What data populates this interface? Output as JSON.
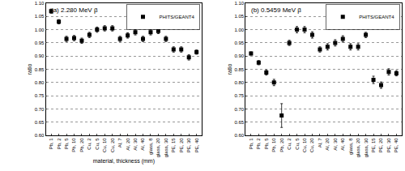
{
  "chart_data": [
    {
      "type": "scatter",
      "title": "(a) 2.280 MeV β",
      "x_label": "material, thickness (mm)",
      "y_label": "ratio",
      "categories": [
        "Pb, 1",
        "Pb, 2",
        "Pb, 5",
        "Pb, 10",
        "Pb, 20",
        "Cu, 2",
        "Cu, 5",
        "Cu, 10",
        "Cu, 20",
        "Al, 7",
        "Al, 20",
        "Al, 30",
        "Al, 40",
        "glass, 8",
        "glass, 20",
        "glass, 30",
        "PE, 15",
        "PE, 20",
        "PE, 30",
        "PE, 40"
      ],
      "series": [
        {
          "name": "PHITS/GEANT4",
          "color": "#000000",
          "marker": "square",
          "values": [
            1.07,
            1.03,
            0.965,
            0.968,
            0.958,
            0.98,
            1.0,
            1.005,
            1.005,
            0.965,
            0.978,
            0.99,
            0.965,
            0.99,
            0.995,
            0.965,
            0.925,
            0.925,
            0.895,
            0.915
          ],
          "errors": [
            0.008,
            0.008,
            0.01,
            0.01,
            0.01,
            0.01,
            0.01,
            0.01,
            0.01,
            0.01,
            0.01,
            0.01,
            0.01,
            0.01,
            0.01,
            0.01,
            0.01,
            0.01,
            0.01,
            0.008
          ]
        }
      ],
      "ylim": [
        0.6,
        1.1
      ],
      "yticks": [
        {
          "value": 0.6,
          "label": "0.60"
        },
        {
          "value": 0.65,
          "label": "0.65"
        },
        {
          "value": 0.7,
          "label": "0.70"
        },
        {
          "value": 0.75,
          "label": "0.75"
        },
        {
          "value": 0.8,
          "label": "0.80"
        },
        {
          "value": 0.85,
          "label": "0.85"
        },
        {
          "value": 0.9,
          "label": "0.90"
        },
        {
          "value": 0.95,
          "label": "0.95"
        },
        {
          "value": 1.0,
          "label": "1.00"
        },
        {
          "value": 1.05,
          "label": "1.05"
        },
        {
          "value": 1.1,
          "label": "1.10"
        }
      ],
      "grid": true,
      "legend": "upper right"
    },
    {
      "type": "scatter",
      "title": "(b) 0.5459 MeV β",
      "y_label": "ratio",
      "categories": [
        "Pb, 1",
        "Pb, 2",
        "Pb, 5",
        "Pb, 10",
        "Pb, 20",
        "Cu, 2",
        "Cu, 5",
        "Cu, 10",
        "Cu, 20",
        "Al, 7",
        "Al, 20",
        "Al, 30",
        "Al, 40",
        "glass, 8",
        "glass, 20",
        "glass, 30",
        "PE, 15",
        "PE, 20",
        "PE, 30",
        "PE, 40"
      ],
      "series": [
        {
          "name": "PHITS/GEANT4",
          "color": "#000000",
          "marker": "square",
          "values": [
            0.91,
            0.875,
            0.838,
            0.8,
            0.675,
            0.95,
            1.0,
            1.0,
            0.98,
            0.925,
            0.935,
            0.95,
            0.965,
            0.935,
            0.935,
            0.98,
            0.81,
            0.79,
            0.84,
            0.835
          ],
          "errors": [
            0.006,
            0.008,
            0.01,
            0.012,
            0.045,
            0.01,
            0.012,
            0.012,
            0.012,
            0.01,
            0.012,
            0.012,
            0.012,
            0.012,
            0.012,
            0.01,
            0.014,
            0.012,
            0.012,
            0.01
          ]
        }
      ],
      "ylim": [
        0.6,
        1.1
      ],
      "yticks": [
        {
          "value": 0.6,
          "label": "0.60"
        },
        {
          "value": 0.65,
          "label": "0.65"
        },
        {
          "value": 0.7,
          "label": "0.70"
        },
        {
          "value": 0.75,
          "label": "0.75"
        },
        {
          "value": 0.8,
          "label": "0.80"
        },
        {
          "value": 0.85,
          "label": "0.85"
        },
        {
          "value": 0.9,
          "label": "0.90"
        },
        {
          "value": 0.95,
          "label": "0.95"
        },
        {
          "value": 1.0,
          "label": "1.00"
        },
        {
          "value": 1.05,
          "label": "1.05"
        },
        {
          "value": 1.1,
          "label": "1.10"
        }
      ],
      "grid": true,
      "legend": "upper right"
    }
  ]
}
